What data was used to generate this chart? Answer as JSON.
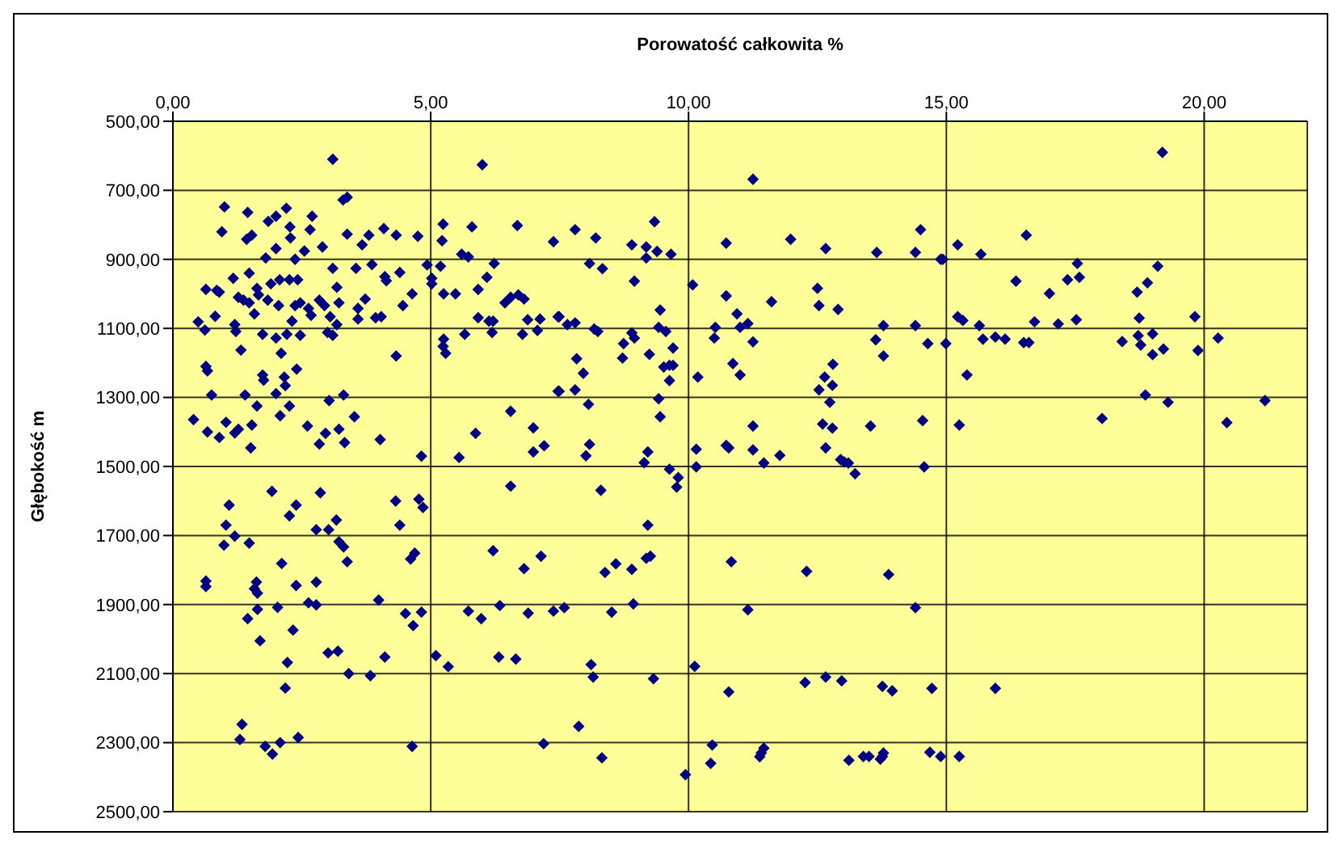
{
  "chart_data": {
    "type": "scatter",
    "xlabel": "Porowatość całkowita %",
    "ylabel": "Głębokość m",
    "xlim": [
      0,
      22
    ],
    "ylim": [
      2500,
      500
    ],
    "xticks": [
      {
        "value": 0,
        "label": "0,00"
      },
      {
        "value": 5,
        "label": "5,00"
      },
      {
        "value": 10,
        "label": "10,00"
      },
      {
        "value": 15,
        "label": "15,00"
      },
      {
        "value": 20,
        "label": "20,00"
      }
    ],
    "yticks": [
      {
        "value": 500,
        "label": "500,00"
      },
      {
        "value": 700,
        "label": "700,00"
      },
      {
        "value": 900,
        "label": "900,00"
      },
      {
        "value": 1100,
        "label": "1100,00"
      },
      {
        "value": 1300,
        "label": "1300,00"
      },
      {
        "value": 1500,
        "label": "1500,00"
      },
      {
        "value": 1700,
        "label": "1700,00"
      },
      {
        "value": 1900,
        "label": "1900,00"
      },
      {
        "value": 2100,
        "label": "2100,00"
      },
      {
        "value": 2300,
        "label": "2300,00"
      },
      {
        "value": 2500,
        "label": "2500,00"
      }
    ],
    "grid": true,
    "legend": false,
    "marker": "diamond",
    "x": [
      3.1,
      6.0,
      1.0,
      1.45,
      2.2,
      3.3,
      3.38,
      2.7,
      1.85,
      2.0,
      0.95,
      2.27,
      2.28,
      2.66,
      1.43,
      1.53,
      2.0,
      1.8,
      2.37,
      2.55,
      2.9,
      3.38,
      3.67,
      3.8,
      4.09,
      4.33,
      4.75,
      5.24,
      5.22,
      5.8,
      6.68,
      7.38,
      4.93,
      5.19,
      5.6,
      5.73,
      6.23,
      6.09,
      5.02,
      5.02,
      5.25,
      5.48,
      5.92,
      6.44,
      6.55,
      6.7,
      6.81,
      5.92,
      6.13,
      6.21,
      5.66,
      6.19,
      6.78,
      6.88,
      7.07,
      7.12,
      7.47,
      7.47,
      5.25,
      5.24,
      5.29,
      3.1,
      3.55,
      3.86,
      4.11,
      4.14,
      4.4,
      4.64,
      4.46,
      3.73,
      3.59,
      3.59,
      3.93,
      4.04,
      3.18,
      1.48,
      1.17,
      0.64,
      0.85,
      0.9,
      0.49,
      0.62,
      0.82,
      1.2,
      1.22,
      1.27,
      1.37,
      1.48,
      1.63,
      1.66,
      1.58,
      1.84,
      2.05,
      1.9,
      2.07,
      2.26,
      2.42,
      2.37,
      2.47,
      2.31,
      2.63,
      2.68,
      2.84,
      2.94,
      3.05,
      3.18,
      3.0,
      3.1,
      3.22,
      2.47,
      2.21,
      2.0,
      1.74,
      1.32,
      2.1,
      2.4,
      0.64,
      0.67,
      1.74,
      1.76,
      2.16,
      2.18,
      2.0,
      2.26,
      0.75,
      1.4,
      1.63,
      0.4,
      0.67,
      0.9,
      1.03,
      1.2,
      1.27,
      1.53,
      1.51,
      2.08,
      2.61,
      2.84,
      2.96,
      3.03,
      3.31,
      3.52,
      3.22,
      3.33,
      4.02,
      4.33,
      4.82,
      5.55,
      5.87,
      6.55,
      6.99,
      7.2,
      6.99,
      11.25,
      9.34,
      7.8,
      8.2,
      8.9,
      9.18,
      9.39,
      9.66,
      9.18,
      8.08,
      8.33,
      8.95,
      10.73,
      11.98,
      12.66,
      13.65,
      14.4,
      14.5,
      14.89,
      10.08,
      10.73,
      11.61,
      12.5,
      12.53,
      12.9,
      10.94,
      11.0,
      11.15,
      10.52,
      10.5,
      11.25,
      9.45,
      9.42,
      9.56,
      8.9,
      8.95,
      9.7,
      9.24,
      9.52,
      9.63,
      9.7,
      9.63,
      9.42,
      9.45,
      8.74,
      8.72,
      7.49,
      7.65,
      7.8,
      8.17,
      8.24,
      7.83,
      7.96,
      7.49,
      7.8,
      8.06,
      10.86,
      11.0,
      10.18,
      13.63,
      13.78,
      13.78,
      14.4,
      14.64,
      14.99,
      12.8,
      12.64,
      12.79,
      12.53,
      12.74,
      12.6,
      12.79,
      13.53,
      14.54,
      11.25,
      12.66,
      10.73,
      10.78,
      10.15,
      11.25,
      11.77,
      8.01,
      8.08,
      9.21,
      12.95,
      13.1,
      19.19,
      16.55,
      15.22,
      15.67,
      14.93,
      17.54,
      19.1,
      16.35,
      17.35,
      17.58,
      17.0,
      18.7,
      18.9,
      15.22,
      15.32,
      16.71,
      17.17,
      17.52,
      18.74,
      19.82,
      15.64,
      15.71,
      15.95,
      16.14,
      16.5,
      16.6,
      18.41,
      18.72,
      18.77,
      19.0,
      19.0,
      19.21,
      19.88,
      20.27,
      15.4,
      18.86,
      19.3,
      21.18,
      15.25,
      18.02,
      20.44,
      1.92,
      1.09,
      2.86,
      2.39,
      2.26,
      1.03,
      1.2,
      0.99,
      1.48,
      2.78,
      3.02,
      3.17,
      3.22,
      3.31,
      3.38,
      2.11,
      0.64,
      0.64,
      1.62,
      1.58,
      1.64,
      2.39,
      2.78,
      2.63,
      2.78,
      2.03,
      1.64,
      1.45,
      2.33,
      1.69,
      2.22,
      2.18,
      3.01,
      3.2,
      3.41,
      3.83,
      4.11,
      3.99,
      4.32,
      4.4,
      4.77,
      4.85,
      4.61,
      4.69,
      4.51,
      4.66,
      4.82,
      1.34,
      1.3,
      1.79,
      1.93,
      2.08,
      2.43,
      4.64,
      5.1,
      5.34,
      6.55,
      6.21,
      6.81,
      7.14,
      5.73,
      5.98,
      6.34,
      6.89,
      7.38,
      6.32,
      6.65,
      7.19,
      9.14,
      9.63,
      9.8,
      9.77,
      10.15,
      11.46,
      13.02,
      13.23,
      14.57,
      8.3,
      9.21,
      10.83,
      12.29,
      13.88,
      8.38,
      8.59,
      8.9,
      9.18,
      9.26,
      7.59,
      8.51,
      8.93,
      11.15,
      14.4,
      8.11,
      8.15,
      9.32,
      10.12,
      10.78,
      12.26,
      12.66,
      12.97,
      13.76,
      13.95,
      14.72,
      7.87,
      8.32,
      9.94,
      10.46,
      10.43,
      11.41,
      11.46,
      11.38,
      13.11,
      13.39,
      13.5,
      13.76,
      13.72,
      13.78,
      14.68,
      14.89,
      15.95,
      15.25
    ],
    "series": [
      {
        "color": "#000080",
        "values": [
          610,
          626,
          748,
          764,
          752,
          728,
          720,
          775,
          790,
          775,
          820,
          806,
          838,
          814,
          842,
          830,
          869,
          896,
          900,
          876,
          864,
          827,
          858,
          830,
          811,
          830,
          833,
          798,
          846,
          806,
          802,
          849,
          916,
          920,
          885,
          893,
          912,
          952,
          955,
          971,
          1000,
          1000,
          987,
          1026,
          1010,
          1003,
          1015,
          1069,
          1079,
          1079,
          1117,
          1112,
          1117,
          1075,
          1106,
          1073,
          1066,
          1282,
          1131,
          1152,
          1172,
          926,
          926,
          915,
          950,
          962,
          938,
          1000,
          1034,
          1015,
          1042,
          1073,
          1069,
          1066,
          981,
          940,
          955,
          987,
          990,
          995,
          1081,
          1105,
          1065,
          1089,
          1109,
          1010,
          1018,
          1026,
          984,
          1003,
          1058,
          1018,
          1034,
          971,
          959,
          959,
          959,
          1034,
          1026,
          1079,
          1042,
          1062,
          1018,
          1034,
          1066,
          1089,
          1112,
          1120,
          1026,
          1120,
          1117,
          1128,
          1117,
          1163,
          1172,
          1218,
          1210,
          1223,
          1235,
          1250,
          1241,
          1266,
          1289,
          1325,
          1293,
          1293,
          1325,
          1364,
          1400,
          1416,
          1372,
          1403,
          1392,
          1380,
          1446,
          1353,
          1383,
          1435,
          1404,
          1309,
          1293,
          1356,
          1392,
          1431,
          1422,
          1180,
          1470,
          1474,
          1404,
          1340,
          1388,
          1440,
          1458,
          668,
          791,
          814,
          838,
          858,
          864,
          877,
          885,
          896,
          912,
          927,
          963,
          853,
          842,
          869,
          880,
          880,
          814,
          900,
          974,
          1006,
          1023,
          984,
          1034,
          1045,
          1058,
          1097,
          1086,
          1097,
          1128,
          1139,
          1047,
          1097,
          1109,
          1113,
          1128,
          1157,
          1175,
          1212,
          1207,
          1207,
          1251,
          1304,
          1356,
          1144,
          1186,
          1066,
          1089,
          1084,
          1102,
          1109,
          1188,
          1230,
          1282,
          1278,
          1320,
          1202,
          1235,
          1241,
          1133,
          1092,
          1180,
          1092,
          1144,
          1144,
          1204,
          1241,
          1265,
          1278,
          1314,
          1377,
          1389,
          1383,
          1367,
          1383,
          1446,
          1439,
          1446,
          1450,
          1452,
          1468,
          1469,
          1436,
          1458,
          1480,
          1490,
          590,
          830,
          858,
          885,
          900,
          912,
          920,
          963,
          959,
          952,
          999,
          995,
          968,
          1066,
          1077,
          1081,
          1087,
          1075,
          1070,
          1066,
          1092,
          1131,
          1125,
          1131,
          1141,
          1141,
          1138,
          1121,
          1148,
          1116,
          1176,
          1160,
          1164,
          1128,
          1235,
          1293,
          1314,
          1309,
          1380,
          1361,
          1373,
          1572,
          1612,
          1576,
          1612,
          1643,
          1670,
          1702,
          1728,
          1722,
          1683,
          1683,
          1655,
          1718,
          1733,
          1776,
          1781,
          1832,
          1848,
          1835,
          1854,
          1867,
          1845,
          1835,
          1895,
          1901,
          1908,
          1914,
          1941,
          1974,
          2005,
          2068,
          2142,
          2040,
          2035,
          2100,
          2106,
          2052,
          1887,
          1600,
          1670,
          1595,
          1619,
          1768,
          1751,
          1926,
          1961,
          1922,
          2247,
          2291,
          2311,
          2333,
          2300,
          2285,
          2311,
          2048,
          2080,
          1557,
          1744,
          1796,
          1760,
          1919,
          1941,
          1903,
          1925,
          1919,
          2052,
          2058,
          2303,
          1489,
          1508,
          1532,
          1560,
          1501,
          1490,
          1487,
          1521,
          1501,
          1569,
          1670,
          1776,
          1804,
          1813,
          1807,
          1782,
          1798,
          1766,
          1760,
          1909,
          1922,
          1898,
          1915,
          1909,
          2074,
          2110,
          2115,
          2079,
          2153,
          2126,
          2110,
          2121,
          2137,
          2150,
          2143,
          2253,
          2344,
          2393,
          2307,
          2360,
          2330,
          2316,
          2341,
          2351,
          2340,
          2340,
          2340,
          2348,
          2330,
          2328,
          2340,
          2143,
          2340
        ]
      }
    ]
  }
}
